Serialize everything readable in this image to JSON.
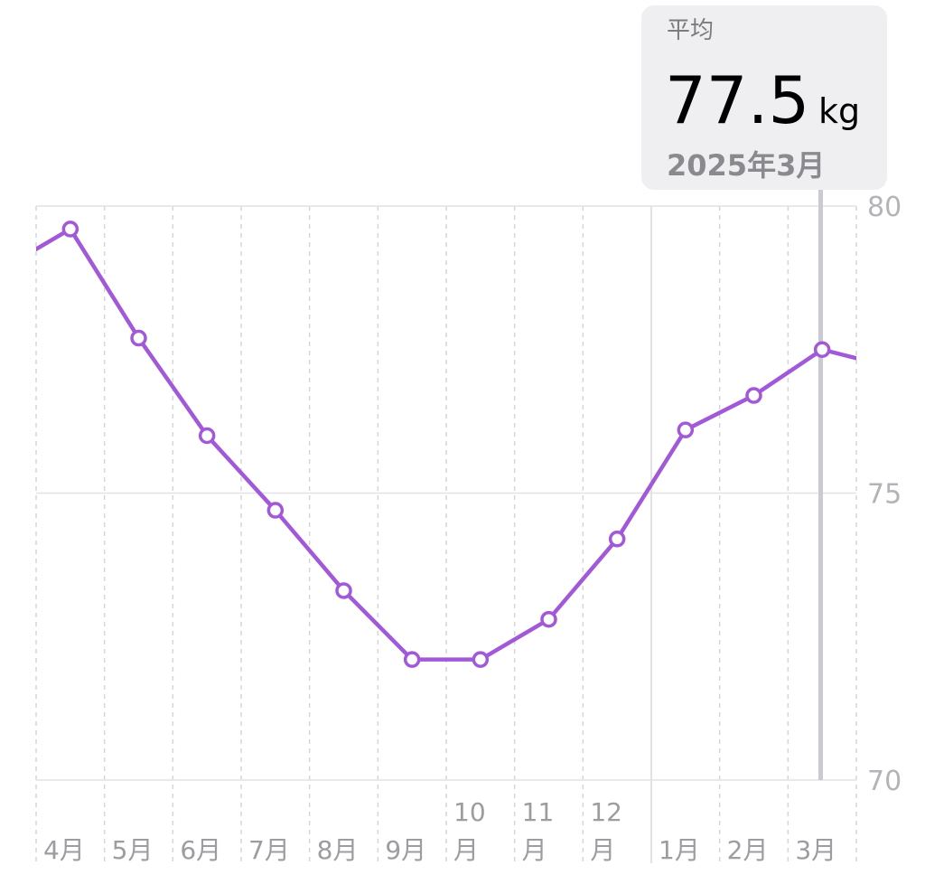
{
  "chart_data": {
    "type": "line",
    "categories": [
      null,
      "4月",
      "5月",
      "6月",
      "7月",
      "8月",
      "9月",
      "10月",
      "11月",
      "12月",
      "1月",
      "2月",
      "3月",
      null
    ],
    "series": [
      {
        "color": "#a259d9",
        "values": [
          78.9,
          79.6,
          77.7,
          76.0,
          74.7,
          73.3,
          72.1,
          72.1,
          72.8,
          74.2,
          76.1,
          76.7,
          77.5,
          77.2
        ]
      }
    ],
    "ylim": [
      70,
      80
    ],
    "yticks": [
      70,
      75,
      80
    ],
    "grid": true,
    "tooltip": {
      "label": "平均",
      "value": "77.5",
      "unit": "kg",
      "date": "2025年3月"
    }
  }
}
